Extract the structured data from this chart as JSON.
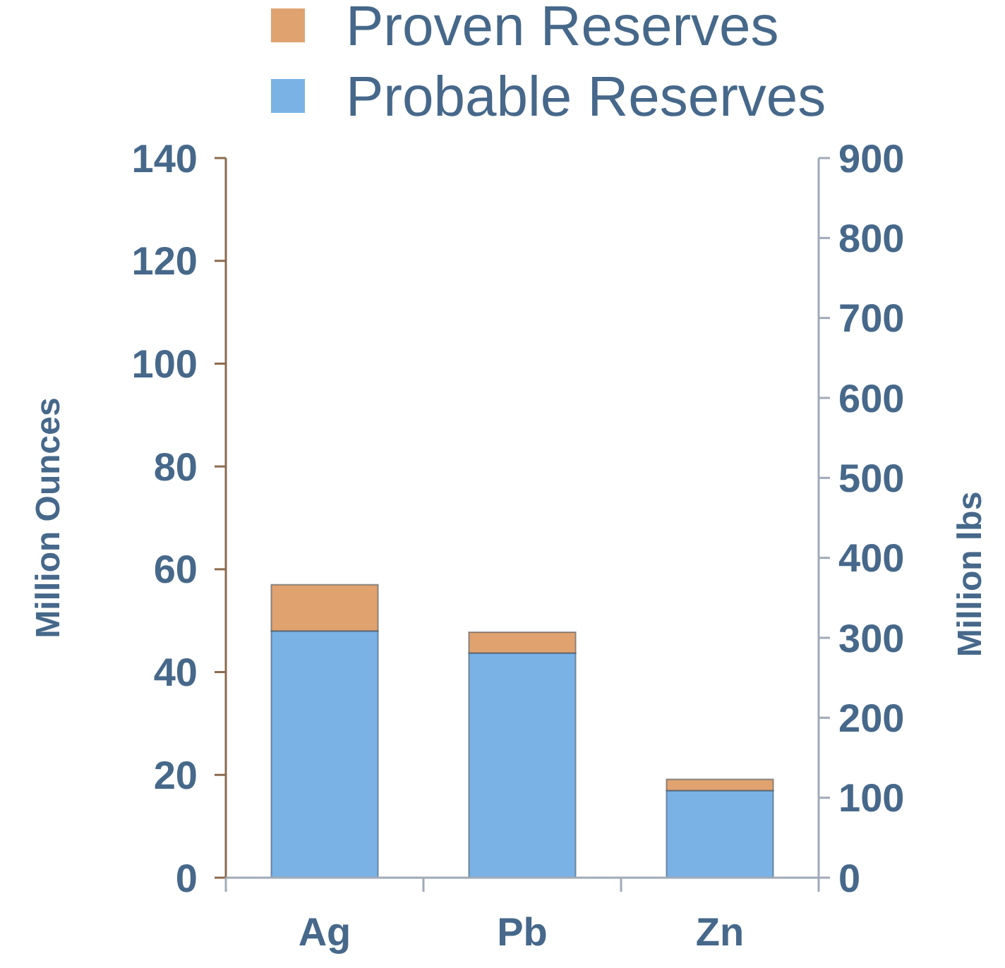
{
  "chart_data": {
    "type": "bar",
    "stacked": true,
    "categories": [
      "Ag",
      "Pb",
      "Zn"
    ],
    "series": [
      {
        "name": "Probable Reserves",
        "color": "#7ab2e6",
        "values": [
          48,
          null,
          null
        ]
      },
      {
        "name": "Proven Reserves",
        "color": "#e0a370",
        "values": [
          9,
          null,
          null
        ]
      },
      {
        "color": "#7ab2e6",
        "values": [
          null,
          281,
          109
        ],
        "axis": "y2"
      },
      {
        "color": "#e0a370",
        "values": [
          null,
          26,
          14
        ],
        "axis": "y2"
      }
    ],
    "ylabel": "Million Ounces",
    "y2label": "Million lbs",
    "ylim": [
      0,
      140
    ],
    "yticks": [
      0,
      20,
      40,
      60,
      80,
      100,
      120,
      140
    ],
    "y2lim": [
      0,
      900
    ],
    "y2ticks": [
      0,
      100,
      200,
      300,
      400,
      500,
      600,
      700,
      800,
      900
    ],
    "legend": "top",
    "grid": false
  }
}
